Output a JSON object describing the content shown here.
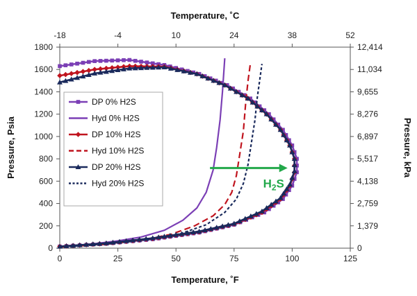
{
  "chart_data": {
    "type": "line",
    "xlabel": "Temperature, ˚F",
    "ylabel": "Pressure, Psia",
    "x2label": "Temperature, ˚C",
    "y2label": "Pressure, kPa",
    "xlim": [
      0,
      125
    ],
    "ylim": [
      0,
      1800
    ],
    "x_ticks": [
      "0",
      "25",
      "50",
      "75",
      "100",
      "125"
    ],
    "y_ticks": [
      "0",
      "200",
      "400",
      "600",
      "800",
      "1000",
      "1200",
      "1400",
      "1600",
      "1800"
    ],
    "x2_ticks": [
      "-18",
      "-4",
      "10",
      "24",
      "38",
      "52"
    ],
    "y2_ticks": [
      "0",
      "1,379",
      "2,759",
      "4,138",
      "5,517",
      "6,897",
      "8,276",
      "9,655",
      "11,034",
      "12,414"
    ],
    "legend_position": "left-center",
    "grid": false,
    "annotation": {
      "text": "H2S",
      "arrow_from": [
        76,
        730
      ],
      "arrow_to": [
        101,
        730
      ],
      "color": "#22a84a"
    },
    "series": [
      {
        "name": "DP 0% H2S",
        "color": "#7b3fb5",
        "style": "solid",
        "marker": "square",
        "points": [
          [
            0,
            15
          ],
          [
            20,
            40
          ],
          [
            40,
            80
          ],
          [
            60,
            140
          ],
          [
            75,
            210
          ],
          [
            88,
            320
          ],
          [
            96,
            440
          ],
          [
            100,
            560
          ],
          [
            102,
            680
          ],
          [
            102,
            800
          ],
          [
            100,
            920
          ],
          [
            96,
            1060
          ],
          [
            90,
            1200
          ],
          [
            82,
            1340
          ],
          [
            72,
            1460
          ],
          [
            60,
            1560
          ],
          [
            45,
            1640
          ],
          [
            30,
            1685
          ],
          [
            15,
            1675
          ],
          [
            0,
            1630
          ]
        ]
      },
      {
        "name": "Hyd 0% H2S",
        "color": "#7b3fb5",
        "style": "solid",
        "marker": "none",
        "points": [
          [
            0,
            10
          ],
          [
            15,
            40
          ],
          [
            25,
            65
          ],
          [
            35,
            100
          ],
          [
            45,
            160
          ],
          [
            53,
            250
          ],
          [
            59,
            360
          ],
          [
            63,
            500
          ],
          [
            66,
            700
          ],
          [
            67.5,
            900
          ],
          [
            69,
            1150
          ],
          [
            70,
            1400
          ],
          [
            71,
            1700
          ]
        ]
      },
      {
        "name": "DP 10% H2S",
        "color": "#c0141e",
        "style": "solid",
        "marker": "diamond",
        "points": [
          [
            0,
            15
          ],
          [
            20,
            42
          ],
          [
            40,
            85
          ],
          [
            60,
            145
          ],
          [
            75,
            215
          ],
          [
            87,
            320
          ],
          [
            95,
            440
          ],
          [
            99,
            560
          ],
          [
            101,
            680
          ],
          [
            101,
            800
          ],
          [
            99,
            920
          ],
          [
            95,
            1060
          ],
          [
            89,
            1200
          ],
          [
            81,
            1340
          ],
          [
            71,
            1460
          ],
          [
            59,
            1560
          ],
          [
            45,
            1625
          ],
          [
            30,
            1630
          ],
          [
            15,
            1600
          ],
          [
            0,
            1545
          ]
        ]
      },
      {
        "name": "Hyd 10% H2S",
        "color": "#c0141e",
        "style": "dashed",
        "marker": "none",
        "points": [
          [
            0,
            10
          ],
          [
            20,
            35
          ],
          [
            35,
            70
          ],
          [
            48,
            125
          ],
          [
            58,
            200
          ],
          [
            66,
            290
          ],
          [
            71,
            390
          ],
          [
            74,
            500
          ],
          [
            76,
            650
          ],
          [
            77.5,
            850
          ],
          [
            79,
            1050
          ],
          [
            80,
            1300
          ],
          [
            81,
            1500
          ],
          [
            82,
            1650
          ]
        ]
      },
      {
        "name": "DP 20% H2S",
        "color": "#1a2a5c",
        "style": "solid",
        "marker": "triangle",
        "points": [
          [
            0,
            15
          ],
          [
            20,
            45
          ],
          [
            40,
            90
          ],
          [
            60,
            150
          ],
          [
            75,
            220
          ],
          [
            87,
            330
          ],
          [
            95,
            450
          ],
          [
            99,
            570
          ],
          [
            101,
            690
          ],
          [
            101,
            800
          ],
          [
            99,
            920
          ],
          [
            95,
            1060
          ],
          [
            89,
            1200
          ],
          [
            81,
            1340
          ],
          [
            71,
            1460
          ],
          [
            59,
            1560
          ],
          [
            45,
            1620
          ],
          [
            30,
            1610
          ],
          [
            15,
            1565
          ],
          [
            0,
            1485
          ]
        ]
      },
      {
        "name": "Hyd 20% H2S",
        "color": "#1a2a5c",
        "style": "dotted",
        "marker": "none",
        "points": [
          [
            0,
            10
          ],
          [
            20,
            38
          ],
          [
            37,
            75
          ],
          [
            52,
            130
          ],
          [
            63,
            210
          ],
          [
            71,
            320
          ],
          [
            76,
            440
          ],
          [
            79,
            580
          ],
          [
            81,
            750
          ],
          [
            82.5,
            950
          ],
          [
            84,
            1150
          ],
          [
            85,
            1350
          ],
          [
            86,
            1500
          ],
          [
            87,
            1650
          ]
        ]
      }
    ]
  }
}
